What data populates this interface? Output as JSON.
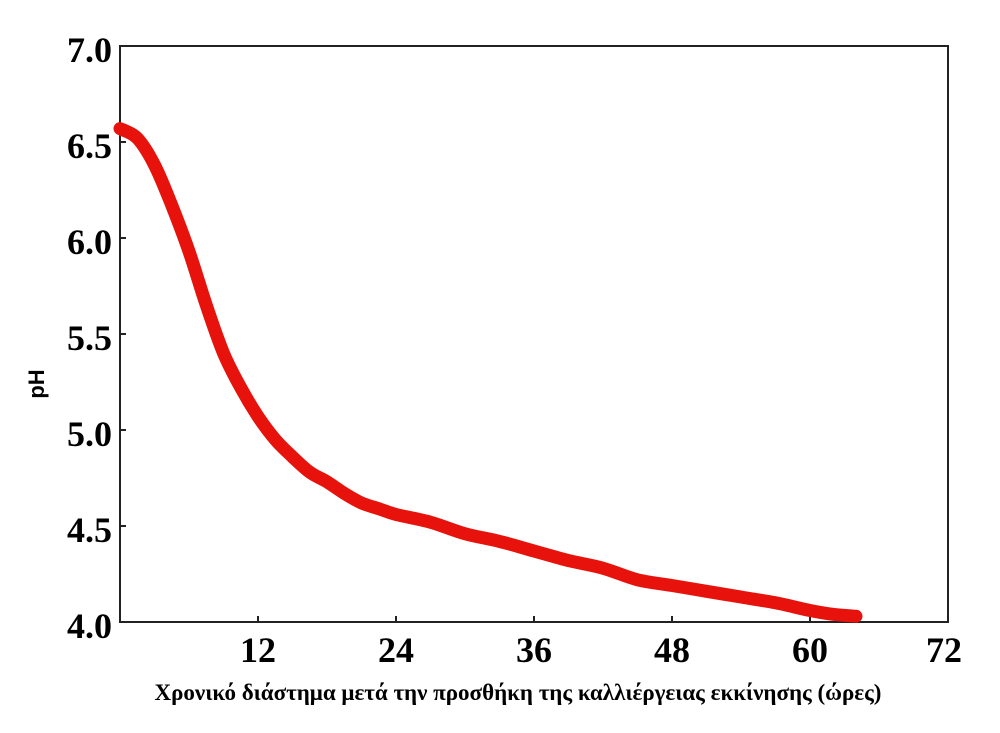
{
  "chart_data": {
    "type": "line",
    "title": "",
    "xlabel": "Χρονικό διάστημα μετά την προσθήκη της καλλιέργειας εκκίνησης (ώρες)",
    "ylabel": "pH",
    "xlim": [
      0,
      72
    ],
    "ylim": [
      4.0,
      7.0
    ],
    "x_ticks": [
      "12",
      "24",
      "36",
      "48",
      "60",
      "72"
    ],
    "y_ticks": [
      "7.0",
      "6.5",
      "6.0",
      "5.5",
      "5.0",
      "4.5",
      "4.0"
    ],
    "grid": false,
    "series": [
      {
        "color": "#e8120c",
        "x": [
          0,
          1.5,
          3,
          4.5,
          6,
          7.5,
          9,
          10.5,
          12,
          13.5,
          15,
          16.5,
          18,
          19.5,
          21,
          22.5,
          24,
          27,
          30,
          33,
          36,
          39,
          42,
          45,
          48,
          51,
          54,
          57,
          60,
          62,
          64
        ],
        "y": [
          6.57,
          6.52,
          6.38,
          6.17,
          5.93,
          5.65,
          5.4,
          5.22,
          5.07,
          4.95,
          4.86,
          4.78,
          4.73,
          4.67,
          4.62,
          4.59,
          4.56,
          4.52,
          4.46,
          4.42,
          4.37,
          4.32,
          4.28,
          4.22,
          4.19,
          4.16,
          4.13,
          4.1,
          4.06,
          4.04,
          4.03
        ]
      }
    ]
  }
}
